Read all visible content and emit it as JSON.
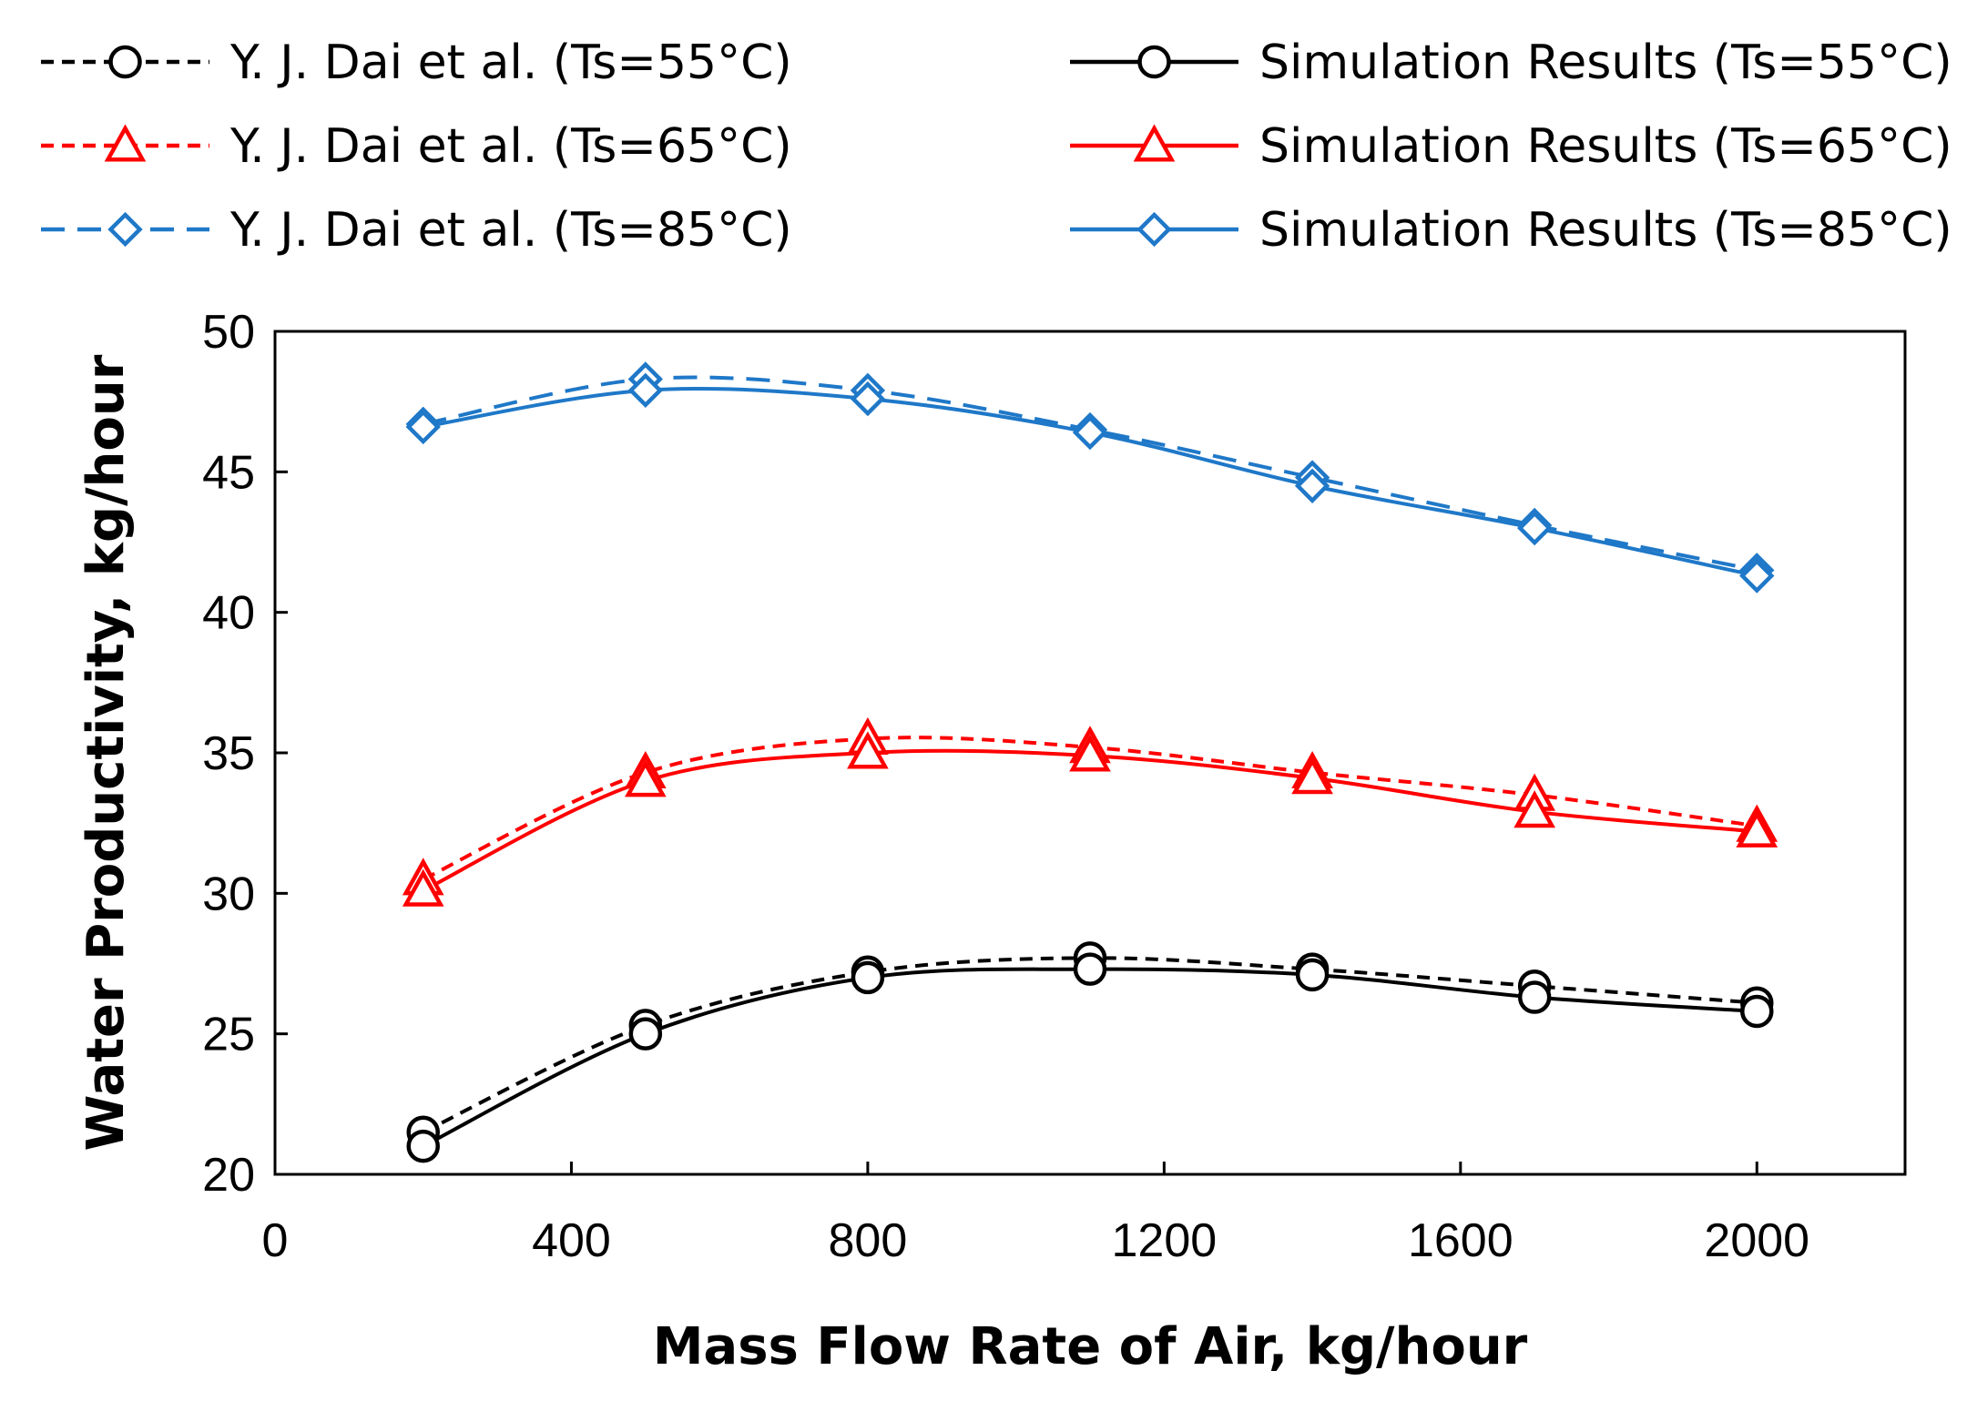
{
  "chart_data": {
    "type": "line",
    "title": "",
    "xlabel": "Mass Flow Rate of Air, kg/hour",
    "ylabel": "Water Productivity, kg/hour",
    "xlim": [
      0,
      2200
    ],
    "ylim": [
      20,
      50
    ],
    "xticks": [
      0,
      400,
      800,
      1200,
      1600,
      2000
    ],
    "yticks": [
      20,
      25,
      30,
      35,
      40,
      45,
      50
    ],
    "grid": false,
    "legend_position": "top",
    "series": [
      {
        "name": "Y. J. Dai et al. (Ts=55°C)",
        "color": "#000000",
        "style": "dashed",
        "marker": "circle",
        "x": [
          200,
          500,
          800,
          1100,
          1400,
          1700,
          2000
        ],
        "y": [
          21.5,
          25.3,
          27.2,
          27.7,
          27.3,
          26.7,
          26.1
        ]
      },
      {
        "name": "Y. J. Dai et al. (Ts=65°C)",
        "color": "#ff0000",
        "style": "dashed",
        "marker": "triangle",
        "x": [
          200,
          500,
          800,
          1100,
          1400,
          1700,
          2000
        ],
        "y": [
          30.5,
          34.3,
          35.5,
          35.2,
          34.3,
          33.5,
          32.4
        ]
      },
      {
        "name": "Y. J. Dai et al. (Ts=85°C)",
        "color": "#1f78c8",
        "style": "longdash",
        "marker": "diamond",
        "x": [
          200,
          500,
          800,
          1100,
          1400,
          1700,
          2000
        ],
        "y": [
          46.7,
          48.3,
          47.9,
          46.5,
          44.8,
          43.1,
          41.5
        ]
      },
      {
        "name": "Simulation Results (Ts=55°C)",
        "color": "#000000",
        "style": "solid",
        "marker": "circle",
        "x": [
          200,
          500,
          800,
          1100,
          1400,
          1700,
          2000
        ],
        "y": [
          21.0,
          25.0,
          27.0,
          27.3,
          27.1,
          26.3,
          25.8
        ]
      },
      {
        "name": "Simulation Results (Ts=65°C)",
        "color": "#ff0000",
        "style": "solid",
        "marker": "triangle",
        "x": [
          200,
          500,
          800,
          1100,
          1400,
          1700,
          2000
        ],
        "y": [
          30.1,
          34.0,
          35.0,
          34.9,
          34.1,
          32.9,
          32.2
        ]
      },
      {
        "name": "Simulation Results (Ts=85°C)",
        "color": "#1f78c8",
        "style": "solid",
        "marker": "diamond",
        "x": [
          200,
          500,
          800,
          1100,
          1400,
          1700,
          2000
        ],
        "y": [
          46.6,
          47.9,
          47.6,
          46.4,
          44.5,
          43.0,
          41.3
        ]
      }
    ]
  }
}
